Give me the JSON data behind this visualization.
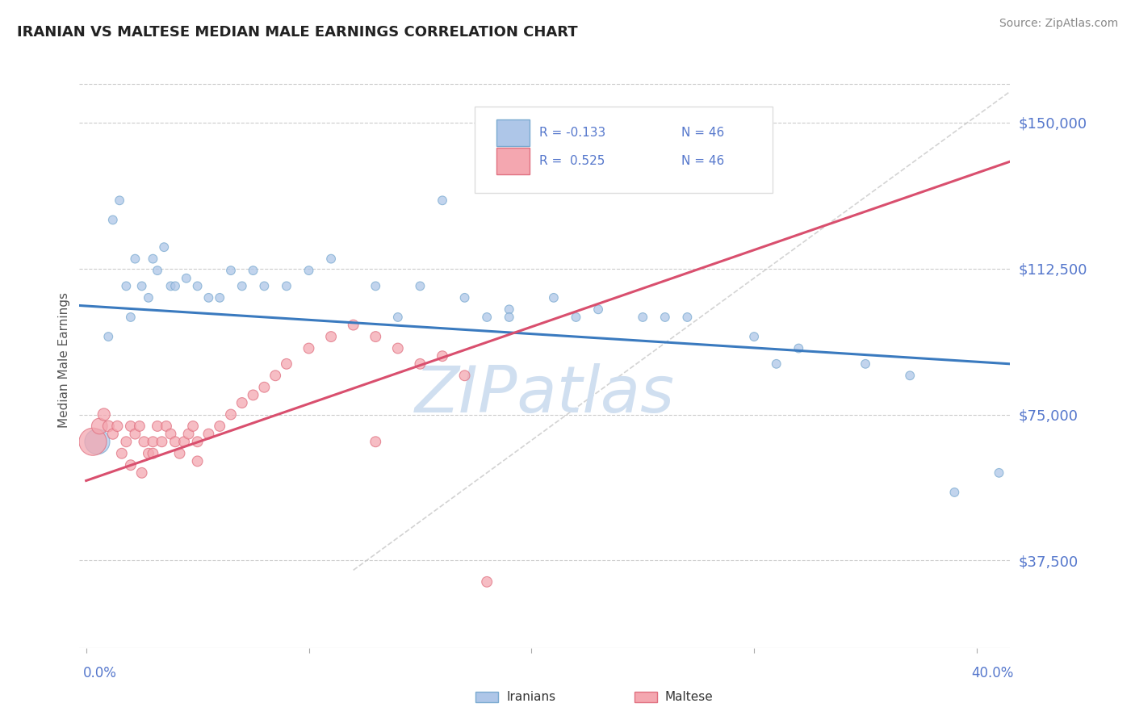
{
  "title": "IRANIAN VS MALTESE MEDIAN MALE EARNINGS CORRELATION CHART",
  "source": "Source: ZipAtlas.com",
  "ylabel": "Median Male Earnings",
  "ytick_labels": [
    "$37,500",
    "$75,000",
    "$112,500",
    "$150,000"
  ],
  "ytick_values": [
    37500,
    75000,
    112500,
    150000
  ],
  "ymin": 15000,
  "ymax": 163000,
  "xmin": -0.003,
  "xmax": 0.415,
  "legend_r1": "R = -0.133",
  "legend_n1": "N = 46",
  "legend_r2": "R =  0.525",
  "legend_n2": "N = 46",
  "blue_scatter_face": "#aec6e8",
  "blue_scatter_edge": "#7aaad0",
  "pink_scatter_face": "#f4a7b0",
  "pink_scatter_edge": "#e07080",
  "line_blue": "#3a7abf",
  "line_pink": "#d94f6e",
  "line_dashed_color": "#c8c8c8",
  "grid_color": "#cccccc",
  "title_color": "#222222",
  "tick_label_color": "#5577cc",
  "watermark_text": "ZIPatlas",
  "watermark_color": "#d0dff0",
  "iranians_x": [
    0.005,
    0.01,
    0.012,
    0.015,
    0.018,
    0.02,
    0.022,
    0.025,
    0.028,
    0.03,
    0.032,
    0.035,
    0.038,
    0.04,
    0.045,
    0.05,
    0.055,
    0.06,
    0.065,
    0.07,
    0.075,
    0.08,
    0.09,
    0.1,
    0.11,
    0.13,
    0.15,
    0.17,
    0.18,
    0.19,
    0.21,
    0.23,
    0.25,
    0.27,
    0.3,
    0.32,
    0.35,
    0.37,
    0.39,
    0.41,
    0.16,
    0.22,
    0.26,
    0.31,
    0.19,
    0.14
  ],
  "iranians_y": [
    68000,
    95000,
    125000,
    130000,
    108000,
    100000,
    115000,
    108000,
    105000,
    115000,
    112000,
    118000,
    108000,
    108000,
    110000,
    108000,
    105000,
    105000,
    112000,
    108000,
    112000,
    108000,
    108000,
    112000,
    115000,
    108000,
    108000,
    105000,
    100000,
    102000,
    105000,
    102000,
    100000,
    100000,
    95000,
    92000,
    88000,
    85000,
    55000,
    60000,
    130000,
    100000,
    100000,
    88000,
    100000,
    100000
  ],
  "iranians_size": [
    500,
    60,
    60,
    60,
    60,
    60,
    60,
    60,
    60,
    60,
    60,
    60,
    60,
    60,
    60,
    60,
    60,
    60,
    60,
    60,
    60,
    60,
    60,
    60,
    60,
    60,
    60,
    60,
    60,
    60,
    60,
    60,
    60,
    60,
    60,
    60,
    60,
    60,
    60,
    60,
    60,
    60,
    60,
    60,
    60,
    60
  ],
  "maltese_x": [
    0.003,
    0.006,
    0.008,
    0.01,
    0.012,
    0.014,
    0.016,
    0.018,
    0.02,
    0.022,
    0.024,
    0.026,
    0.028,
    0.03,
    0.032,
    0.034,
    0.036,
    0.038,
    0.04,
    0.042,
    0.044,
    0.046,
    0.048,
    0.05,
    0.055,
    0.06,
    0.065,
    0.07,
    0.075,
    0.08,
    0.085,
    0.09,
    0.1,
    0.11,
    0.12,
    0.13,
    0.14,
    0.15,
    0.16,
    0.17,
    0.02,
    0.025,
    0.03,
    0.05,
    0.18,
    0.13
  ],
  "maltese_y": [
    68000,
    72000,
    75000,
    72000,
    70000,
    72000,
    65000,
    68000,
    72000,
    70000,
    72000,
    68000,
    65000,
    68000,
    72000,
    68000,
    72000,
    70000,
    68000,
    65000,
    68000,
    70000,
    72000,
    68000,
    70000,
    72000,
    75000,
    78000,
    80000,
    82000,
    85000,
    88000,
    92000,
    95000,
    98000,
    95000,
    92000,
    88000,
    90000,
    85000,
    62000,
    60000,
    65000,
    63000,
    32000,
    68000
  ],
  "maltese_size": [
    600,
    200,
    120,
    100,
    90,
    90,
    85,
    85,
    85,
    85,
    85,
    85,
    85,
    85,
    85,
    85,
    85,
    85,
    85,
    85,
    85,
    85,
    85,
    85,
    85,
    85,
    85,
    85,
    85,
    85,
    85,
    85,
    85,
    85,
    85,
    85,
    85,
    85,
    85,
    85,
    85,
    85,
    85,
    85,
    85,
    85
  ]
}
